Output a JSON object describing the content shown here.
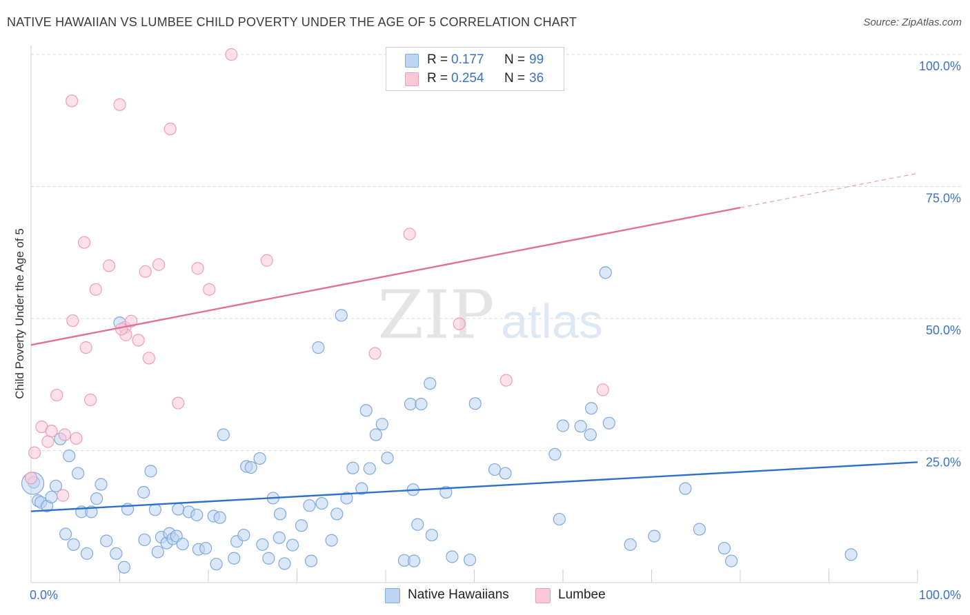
{
  "header": {
    "title": "NATIVE HAWAIIAN VS LUMBEE CHILD POVERTY UNDER THE AGE OF 5 CORRELATION CHART",
    "source": "Source: ZipAtlas.com"
  },
  "watermark": {
    "zip": "ZIP",
    "atlas": "atlas"
  },
  "legend_top": [
    {
      "r_label": "R =",
      "r_value": "0.177",
      "n_label": "N =",
      "n_value": "99"
    },
    {
      "r_label": "R =",
      "r_value": "0.254",
      "n_label": "N =",
      "n_value": "36"
    }
  ],
  "legend_bottom": [
    {
      "label": "Native Hawaiians"
    },
    {
      "label": "Lumbee"
    }
  ],
  "colors": {
    "native_fill": "#bcd4f2",
    "native_stroke": "#7fa8dc",
    "native_line": "#2d6fcb",
    "lumbee_fill": "#f9c9d8",
    "lumbee_stroke": "#ee9db6",
    "lumbee_line": "#e0709a",
    "axis_text": "#3b73c4",
    "grid": "#d9d9d9"
  },
  "chart_data": {
    "type": "scatter",
    "title": "NATIVE HAWAIIAN VS LUMBEE CHILD POVERTY UNDER THE AGE OF 5 CORRELATION CHART",
    "xlabel": "",
    "ylabel": "Child Poverty Under the Age of 5",
    "xlim": [
      0,
      100
    ],
    "ylim": [
      0,
      100
    ],
    "x_tick_labels": [
      "0.0%",
      "100.0%"
    ],
    "y_ticks": [
      25,
      50,
      75,
      100
    ],
    "y_tick_labels": [
      "25.0%",
      "50.0%",
      "75.0%",
      "100.0%"
    ],
    "grid": true,
    "legend_position": "top-center",
    "series": [
      {
        "name": "Native Hawaiians",
        "R": 0.177,
        "N": 99,
        "trend": {
          "x0": 0,
          "y0": 13.5,
          "x1": 100,
          "y1": 22.8,
          "solid_until": 100
        },
        "points": [
          [
            0.3,
            19.0
          ],
          [
            0.8,
            15.5
          ],
          [
            1.1,
            15.2
          ],
          [
            1.8,
            14.5
          ],
          [
            2.3,
            16.2
          ],
          [
            2.8,
            18.3
          ],
          [
            3.3,
            27.2
          ],
          [
            3.9,
            9.2
          ],
          [
            4.3,
            24.0
          ],
          [
            4.8,
            7.2
          ],
          [
            5.3,
            20.7
          ],
          [
            5.7,
            13.4
          ],
          [
            6.3,
            5.5
          ],
          [
            6.8,
            13.4
          ],
          [
            7.4,
            15.9
          ],
          [
            7.9,
            18.6
          ],
          [
            8.5,
            7.9
          ],
          [
            9.6,
            5.5
          ],
          [
            10.0,
            49.2
          ],
          [
            10.5,
            2.9
          ],
          [
            10.9,
            13.9
          ],
          [
            12.7,
            17.1
          ],
          [
            12.8,
            8.1
          ],
          [
            13.5,
            21.1
          ],
          [
            14.0,
            13.8
          ],
          [
            14.3,
            5.8
          ],
          [
            14.7,
            8.6
          ],
          [
            15.3,
            7.5
          ],
          [
            15.6,
            9.3
          ],
          [
            16.0,
            8.3
          ],
          [
            16.4,
            8.8
          ],
          [
            16.6,
            13.9
          ],
          [
            17.1,
            7.3
          ],
          [
            17.8,
            13.4
          ],
          [
            18.7,
            12.8
          ],
          [
            18.9,
            6.3
          ],
          [
            19.7,
            6.5
          ],
          [
            20.6,
            12.6
          ],
          [
            20.9,
            3.5
          ],
          [
            21.3,
            12.3
          ],
          [
            21.7,
            28.0
          ],
          [
            22.9,
            4.6
          ],
          [
            23.2,
            7.8
          ],
          [
            24.0,
            9.0
          ],
          [
            24.3,
            22.0
          ],
          [
            24.8,
            21.8
          ],
          [
            25.8,
            23.5
          ],
          [
            26.1,
            7.2
          ],
          [
            26.8,
            4.6
          ],
          [
            27.3,
            16.0
          ],
          [
            28.0,
            8.5
          ],
          [
            28.1,
            13.0
          ],
          [
            28.6,
            3.6
          ],
          [
            29.5,
            7.1
          ],
          [
            30.5,
            10.8
          ],
          [
            31.4,
            14.6
          ],
          [
            31.6,
            4.1
          ],
          [
            32.4,
            44.5
          ],
          [
            32.8,
            15.0
          ],
          [
            33.9,
            8.0
          ],
          [
            34.5,
            13.0
          ],
          [
            35.0,
            50.6
          ],
          [
            35.6,
            16.0
          ],
          [
            36.3,
            21.7
          ],
          [
            37.3,
            17.8
          ],
          [
            37.8,
            32.6
          ],
          [
            38.2,
            21.6
          ],
          [
            38.9,
            28.0
          ],
          [
            39.6,
            30.0
          ],
          [
            40.2,
            23.6
          ],
          [
            42.1,
            4.2
          ],
          [
            42.8,
            33.8
          ],
          [
            43.1,
            17.6
          ],
          [
            43.2,
            4.1
          ],
          [
            43.6,
            11.0
          ],
          [
            44.0,
            33.8
          ],
          [
            45.0,
            37.7
          ],
          [
            45.2,
            9.0
          ],
          [
            46.8,
            17.1
          ],
          [
            47.5,
            4.9
          ],
          [
            49.5,
            4.3
          ],
          [
            50.1,
            33.9
          ],
          [
            52.3,
            21.4
          ],
          [
            53.5,
            20.7
          ],
          [
            59.1,
            24.3
          ],
          [
            59.6,
            12.0
          ],
          [
            60.0,
            29.7
          ],
          [
            62.0,
            29.6
          ],
          [
            63.1,
            28.0
          ],
          [
            63.2,
            33.0
          ],
          [
            64.8,
            58.7
          ],
          [
            65.2,
            30.2
          ],
          [
            67.6,
            7.2
          ],
          [
            70.3,
            8.8
          ],
          [
            73.8,
            17.8
          ],
          [
            75.4,
            10.1
          ],
          [
            78.2,
            6.5
          ],
          [
            79.0,
            4.1
          ],
          [
            92.5,
            5.3
          ]
        ]
      },
      {
        "name": "Lumbee",
        "R": 0.254,
        "N": 36,
        "trend": {
          "x0": 0,
          "y0": 45.0,
          "x1": 100,
          "y1": 77.5,
          "solid_until": 80
        },
        "points": [
          [
            0.0,
            19.8
          ],
          [
            0.4,
            24.6
          ],
          [
            1.2,
            29.5
          ],
          [
            1.9,
            26.7
          ],
          [
            2.3,
            28.7
          ],
          [
            2.9,
            35.5
          ],
          [
            3.6,
            16.5
          ],
          [
            3.8,
            28.0
          ],
          [
            4.6,
            91.2
          ],
          [
            4.7,
            49.6
          ],
          [
            5.1,
            27.3
          ],
          [
            6.2,
            44.5
          ],
          [
            6.0,
            64.4
          ],
          [
            6.7,
            34.6
          ],
          [
            7.3,
            55.5
          ],
          [
            8.8,
            60.0
          ],
          [
            10.0,
            90.5
          ],
          [
            10.6,
            48.3
          ],
          [
            10.7,
            46.9
          ],
          [
            11.3,
            49.5
          ],
          [
            12.1,
            45.9
          ],
          [
            12.9,
            58.9
          ],
          [
            13.3,
            42.5
          ],
          [
            14.4,
            60.2
          ],
          [
            15.7,
            85.9
          ],
          [
            16.6,
            34.0
          ],
          [
            18.8,
            59.5
          ],
          [
            20.1,
            55.5
          ],
          [
            22.6,
            100.0
          ],
          [
            26.6,
            61.0
          ],
          [
            38.8,
            43.4
          ],
          [
            42.7,
            66.0
          ],
          [
            48.3,
            49.0
          ],
          [
            53.6,
            38.3
          ],
          [
            64.5,
            36.5
          ],
          [
            10.2,
            48.0
          ]
        ]
      }
    ]
  }
}
